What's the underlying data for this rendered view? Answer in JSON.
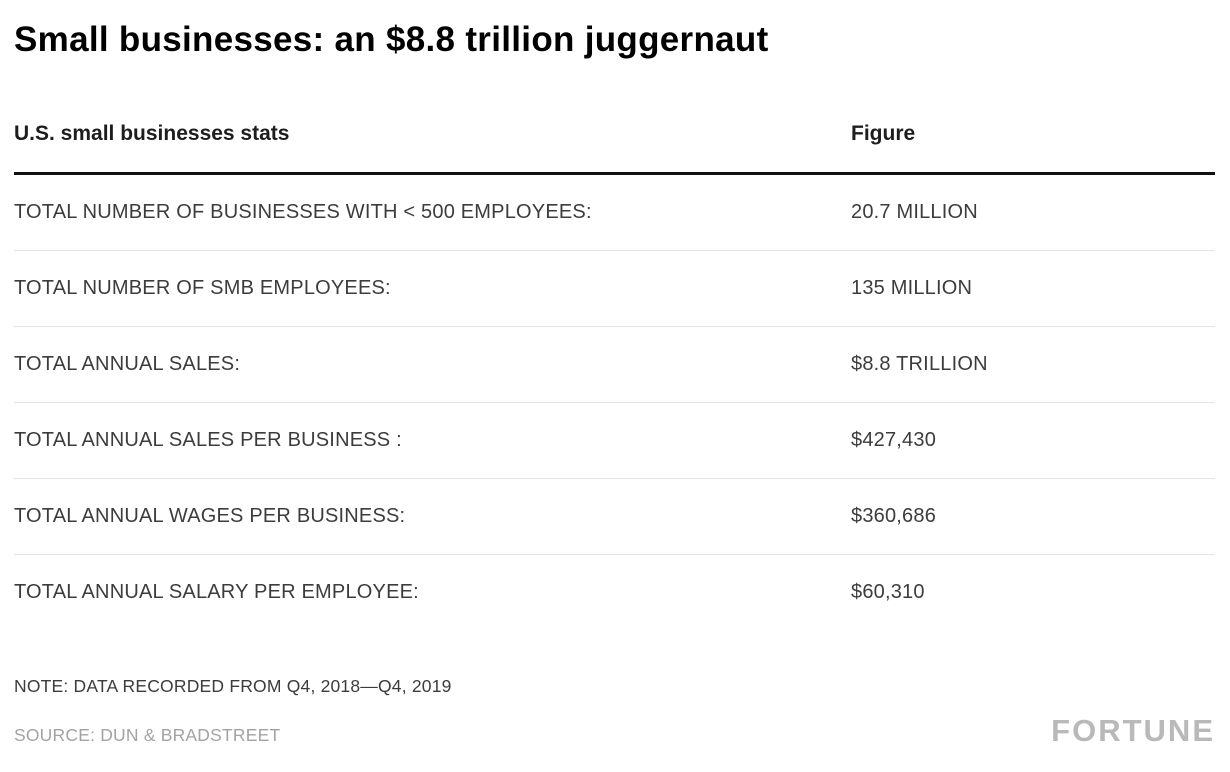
{
  "title": "Small businesses: an $8.8 trillion juggernaut",
  "table": {
    "headers": [
      "U.S. small businesses stats",
      "Figure"
    ],
    "rows": [
      {
        "label": "TOTAL NUMBER OF BUSINESSES WITH < 500 EMPLOYEES:",
        "value": "20.7 MILLION"
      },
      {
        "label": "TOTAL NUMBER OF SMB EMPLOYEES:",
        "value": "135 MILLION"
      },
      {
        "label": "TOTAL ANNUAL SALES:",
        "value": "$8.8 TRILLION"
      },
      {
        "label": "TOTAL ANNUAL SALES PER BUSINESS :",
        "value": "$427,430"
      },
      {
        "label": "TOTAL ANNUAL WAGES PER BUSINESS:",
        "value": "$360,686"
      },
      {
        "label": "TOTAL ANNUAL SALARY PER EMPLOYEE:",
        "value": "$60,310"
      }
    ]
  },
  "note": "NOTE: DATA RECORDED FROM Q4, 2018—Q4, 2019",
  "source": "SOURCE: DUN & BRADSTREET",
  "brand": "FORTUNE",
  "colors": {
    "title": "#000000",
    "header_text": "#1d1d1d",
    "row_text": "#3c3c3c",
    "thick_rule": "#111111",
    "divider": "#e4e4e4",
    "muted": "#a3a3a3",
    "brand": "#b9b9b9",
    "background": "#ffffff"
  },
  "chart_data": {
    "type": "table",
    "title": "Small businesses: an $8.8 trillion juggernaut",
    "columns": [
      "U.S. small businesses stats",
      "Figure"
    ],
    "rows": [
      [
        "TOTAL NUMBER OF BUSINESSES WITH < 500 EMPLOYEES:",
        "20.7 MILLION"
      ],
      [
        "TOTAL NUMBER OF SMB EMPLOYEES:",
        "135 MILLION"
      ],
      [
        "TOTAL ANNUAL SALES:",
        "$8.8 TRILLION"
      ],
      [
        "TOTAL ANNUAL SALES PER BUSINESS :",
        "$427,430"
      ],
      [
        "TOTAL ANNUAL WAGES PER BUSINESS:",
        "$360,686"
      ],
      [
        "TOTAL ANNUAL SALARY PER EMPLOYEE:",
        "$60,310"
      ]
    ],
    "values_numeric": [
      20700000,
      135000000,
      8800000000000,
      427430,
      360686,
      60310
    ],
    "note": "DATA RECORDED FROM Q4, 2018—Q4, 2019",
    "source": "DUN & BRADSTREET",
    "legend_position": "none",
    "grid": "horizontal-dividers"
  }
}
